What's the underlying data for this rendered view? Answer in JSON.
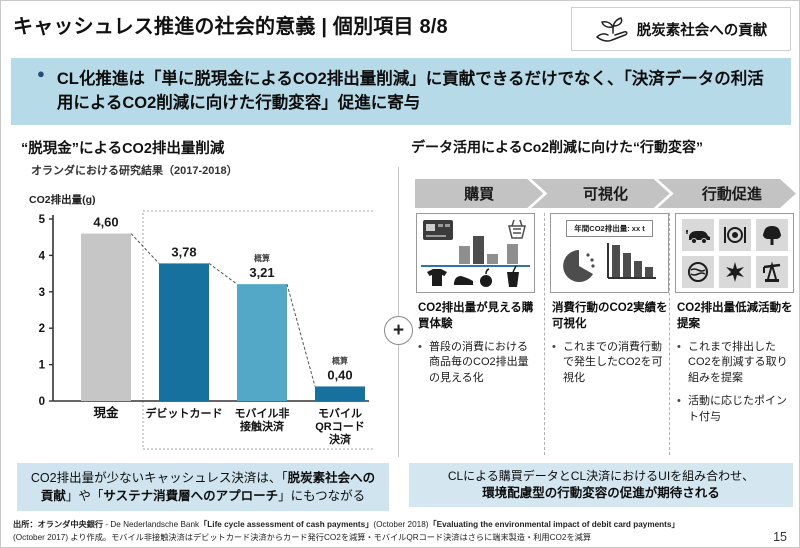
{
  "slide": {
    "title": "キャッシュレス推進の社会的意義 | 個別項目 8/8",
    "page_number": "15"
  },
  "badge": {
    "label": "脱炭素社会への貢献",
    "icon": "seedling-in-hand-icon"
  },
  "banner": {
    "bullet": "●",
    "text": "CL化推進は「単に脱現金によるCO2排出量削減」に貢献できるだけでなく、「決済データの利活用によるCO2削減に向けた行動変容」促進に寄与"
  },
  "left": {
    "heading": "“脱現金”によるCO2排出量削減",
    "subheading": "オランダにおける研究結果（2017-2018）",
    "axis_label": "CO2排出量(g)",
    "summary": {
      "pre": "CO2排出量が少ないキャッシュレス決済は、「",
      "bold1": "脱炭素社会への貢献",
      "mid": "」や「",
      "bold2": "サステナ消費層へのアプローチ",
      "post": "」にもつながる"
    }
  },
  "chart_data": {
    "type": "bar",
    "title": "“脱現金”によるCO2排出量削減",
    "subtitle": "オランダにおける研究結果（2017-2018）",
    "ylabel": "CO2排出量(g)",
    "ylim": [
      0,
      5
    ],
    "yticks": [
      0,
      1,
      2,
      3,
      4,
      5
    ],
    "grid": false,
    "categories": [
      "現金",
      "デビットカード",
      "モバイル非接触決済",
      "モバイルQRコード決済"
    ],
    "category_lines": [
      [
        "現金"
      ],
      [
        "デビットカード"
      ],
      [
        "モバイル非",
        "接触決済"
      ],
      [
        "モバイル",
        "QRコード",
        "決済"
      ]
    ],
    "values": [
      4.6,
      3.78,
      3.21,
      0.4
    ],
    "value_labels": [
      "4,60",
      "3,78",
      "3,21",
      "0,40"
    ],
    "estimate_note": "概算",
    "estimate_flags": [
      false,
      false,
      true,
      true
    ],
    "bar_colors": [
      "#c6c6c6",
      "#16719e",
      "#54a8c7",
      "#16719e"
    ],
    "annotations": "dashed box groups the three cashless methods; dashed trend line connects bar tops"
  },
  "right": {
    "heading": "データ活用によるCo2削減に向けた“行動変容”",
    "steps": [
      {
        "label": "購買",
        "title": "CO2排出量が見える購買体験",
        "bullets": [
          "普段の消費における商品毎のCO2排出量の見える化"
        ]
      },
      {
        "label": "可視化",
        "title": "消費行動のCO2実績を可視化",
        "bullets": [
          "これまでの消費行動で発生したCO2を可視化"
        ],
        "chip_label": "年間CO2排出量: xx t"
      },
      {
        "label": "行動促進",
        "title": "CO2排出量低減活動を提案",
        "bullets": [
          "これまで排出したCO2を削減する取り組みを提案",
          "活動に応じたポイント付与"
        ]
      }
    ],
    "summary_line1": "CLによる購買データとCL決済におけるUIを組み合わせ、",
    "summary_line2": "環境配慮型の行動変容の促進が期待される"
  },
  "footer": {
    "line1_segments": [
      {
        "text": "出所：オランダ中央銀行",
        "bold": true
      },
      {
        "text": " - De Nederlandsche Bank",
        "bold": false
      },
      {
        "text": "「Life cycle assessment of cash payments」",
        "bold": true
      },
      {
        "text": "(October 2018)",
        "bold": false
      },
      {
        "text": "「Evaluating the environmental impact of debit card payments」",
        "bold": true
      }
    ],
    "line2": "(October 2017) より作成。モバイル非接触決済はデビットカード決済からカード発行CO2を減算・モバイルQRコード決済はさらに端末製造・利用CO2を減算"
  },
  "colors": {
    "banner_bg": "#b7dae9",
    "summary_box_bg": "#cfe4ef",
    "bar_cash": "#c6c6c6",
    "bar_dark_blue": "#16719e",
    "bar_light_blue": "#54a8c7",
    "chevron_gray": "#c3c3c3",
    "tile_gray": "#d9d9d9",
    "bullet_navy": "#1f4e79"
  }
}
